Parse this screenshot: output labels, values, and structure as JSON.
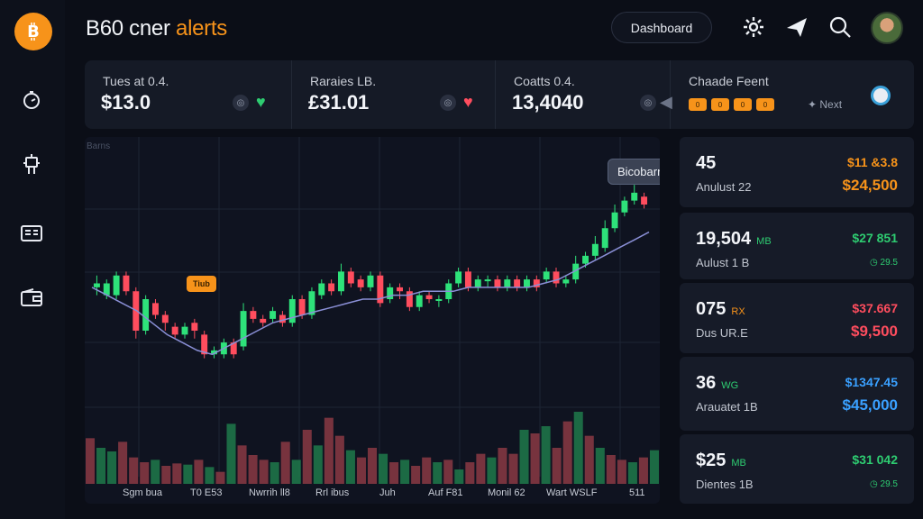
{
  "brand": {
    "title_main": "B60 cner",
    "title_accent": "alerts"
  },
  "header": {
    "dashboard_label": "Dashboard"
  },
  "icons": {
    "logo": "bitcoin-icon",
    "timer": "timer-icon",
    "robot": "robot-icon",
    "news": "news-icon",
    "wallet": "wallet-icon",
    "settings": "gear-icon",
    "send": "send-icon",
    "search": "search-icon"
  },
  "stats": [
    {
      "label": "Tues at 0.4.",
      "value": "$13.0"
    },
    {
      "label": "Raraies LB.",
      "value": "£31.01"
    },
    {
      "label": "Coatts 0.4.",
      "value": "13,4040"
    },
    {
      "label": "Chaade Feent",
      "next": "Next",
      "chips": [
        "0",
        "0",
        "0",
        "0"
      ]
    }
  ],
  "chart": {
    "corner_label": "Barns",
    "tooltip": "Bicobarr",
    "badge": "Tiub",
    "x_labels": [
      "Sgm bua",
      "T0 E53",
      "Nwrrih ll8",
      "Rrl ibus",
      "Juh",
      "Auf F81",
      "Monil 62",
      "Wart WSLF",
      "511"
    ]
  },
  "chart_data": {
    "type": "candlestick",
    "series": [
      {
        "values": [
          [
            -5,
            -4,
            -7,
            -2
          ],
          [
            -7,
            -4,
            -8,
            -3
          ],
          [
            -7,
            -2,
            -8,
            -1
          ],
          [
            -2,
            -6,
            -1,
            -7
          ],
          [
            -6,
            -16,
            -5,
            -18
          ],
          [
            -16,
            -8,
            -17,
            -7
          ],
          [
            -9,
            -12,
            -8,
            -13
          ],
          [
            -12,
            -14,
            -11,
            -16
          ],
          [
            -15,
            -17,
            -14,
            -18
          ],
          [
            -17,
            -15,
            -18,
            -14
          ],
          [
            -14,
            -16,
            -13,
            -18
          ],
          [
            -17,
            -22,
            -16,
            -23
          ],
          [
            -22,
            -21,
            -23,
            -20
          ],
          [
            -22,
            -19,
            -23,
            -18
          ],
          [
            -19,
            -22,
            -18,
            -23
          ],
          [
            -20,
            -11,
            -21,
            -9
          ],
          [
            -11,
            -13,
            -10,
            -14
          ],
          [
            -13,
            -14,
            -12,
            -15
          ],
          [
            -13,
            -11,
            -14,
            -10
          ],
          [
            -12,
            -14,
            -11,
            -15
          ],
          [
            -14,
            -8,
            -15,
            -7
          ],
          [
            -8,
            -12,
            -7,
            -13
          ],
          [
            -12,
            -6,
            -13,
            -5
          ],
          [
            -7,
            -4,
            -8,
            -3
          ],
          [
            -4,
            -6,
            -3,
            -7
          ],
          [
            -6,
            -1,
            -7,
            1
          ],
          [
            -1,
            -4,
            0,
            -5
          ],
          [
            -3,
            -5,
            -2,
            -6
          ],
          [
            -5,
            -2,
            -6,
            -1
          ],
          [
            -2,
            -9,
            -1,
            -10
          ],
          [
            -8,
            -5,
            -9,
            -4
          ],
          [
            -5,
            -6,
            -4,
            -8
          ],
          [
            -6,
            -10,
            -5,
            -11
          ],
          [
            -10,
            -7,
            -11,
            -6
          ],
          [
            -7,
            -8,
            -6,
            -9
          ],
          [
            -8,
            -8,
            -7,
            -10
          ],
          [
            -8,
            -4,
            -9,
            -3
          ],
          [
            -4,
            -1,
            -5,
            0
          ],
          [
            -1,
            -5,
            0,
            -6
          ],
          [
            -5,
            -3,
            -6,
            -2
          ],
          [
            -3,
            -3,
            -2,
            -5
          ],
          [
            -3,
            -5,
            -2,
            -6
          ],
          [
            -5,
            -3,
            -6,
            -2
          ],
          [
            -3,
            -5,
            -2,
            -6
          ],
          [
            -5,
            -3,
            -6,
            -2
          ],
          [
            -3,
            -5,
            -2,
            -6
          ],
          [
            -3,
            -1,
            -4,
            0
          ],
          [
            -1,
            -4,
            0,
            -5
          ],
          [
            -4,
            -3,
            -5,
            -2
          ],
          [
            -3,
            1,
            -4,
            3
          ],
          [
            1,
            3,
            0,
            4
          ],
          [
            3,
            6,
            2,
            8
          ],
          [
            5,
            10,
            4,
            12
          ],
          [
            10,
            14,
            9,
            16
          ],
          [
            14,
            17,
            13,
            18
          ],
          [
            17,
            19,
            16,
            21
          ],
          [
            18,
            16,
            19,
            15
          ]
        ]
      },
      {
        "values": [
          -5,
          -7,
          -9,
          -11,
          -14,
          -17,
          -19,
          -21,
          -22,
          -20,
          -18,
          -16,
          -14,
          -13,
          -12,
          -11,
          -10,
          -9,
          -8,
          -8,
          -7,
          -7,
          -6,
          -6,
          -6,
          -5,
          -5,
          -5,
          -5,
          -5,
          -4,
          -3,
          -1,
          1,
          3,
          5,
          7,
          9
        ]
      }
    ],
    "ylim": [
      -24,
      24
    ],
    "volumes": [
      38,
      30,
      27,
      35,
      22,
      18,
      20,
      15,
      17,
      16,
      20,
      14,
      10,
      50,
      32,
      24,
      20,
      18,
      35,
      20,
      45,
      32,
      55,
      40,
      28,
      22,
      30,
      25,
      18,
      20,
      15,
      22,
      18,
      20,
      12,
      18,
      25,
      22,
      30,
      25,
      45,
      42,
      48,
      30,
      52,
      60,
      40,
      30,
      24,
      20,
      18,
      22,
      28
    ],
    "volume_colors": [
      "r",
      "g",
      "g",
      "r",
      "r",
      "r",
      "g",
      "r",
      "r",
      "g",
      "r",
      "g",
      "r",
      "g",
      "r",
      "r",
      "r",
      "g",
      "r",
      "g",
      "r",
      "g",
      "r",
      "r",
      "g",
      "r",
      "r",
      "g",
      "r",
      "g",
      "r",
      "r",
      "g",
      "r",
      "g",
      "r",
      "r",
      "g",
      "r",
      "r",
      "g",
      "r",
      "g",
      "r",
      "r",
      "g",
      "r",
      "g",
      "r",
      "r",
      "g",
      "r",
      "g"
    ]
  },
  "right_list": [
    {
      "big": "45",
      "tag": "",
      "sub": "Anulust 22",
      "v1": "$11 &3.8",
      "v1_color": "#f7931a",
      "v2": "$24,500",
      "v2_color": "#f7931a"
    },
    {
      "big": "19,504",
      "tag": "MB",
      "tag_color": "#2ecc71",
      "sub": "Aulust 1 B",
      "v1": "$27 851",
      "v1_color": "#2ecc71",
      "v2": "◷ 29.5",
      "v2_color": "#2ecc71"
    },
    {
      "big": "075",
      "tag": "RX",
      "tag_color": "#f7931a",
      "sub": "Dus UR.E",
      "v1": "$37.667",
      "v1_color": "#ff4d5e",
      "v2": "$9,500",
      "v2_color": "#ff4d5e"
    },
    {
      "big": "36",
      "tag": "WG",
      "tag_color": "#2ecc71",
      "sub": "Arauatet 1B",
      "v1": "$1347.45",
      "v1_color": "#3aa0ff",
      "v2": "$45,000",
      "v2_color": "#3aa0ff"
    },
    {
      "big": "$25",
      "tag": "MB",
      "tag_color": "#2ecc71",
      "sub": "Dientes 1B",
      "v1": "$31 042",
      "v1_color": "#2ecc71",
      "v2": "◷ 29.5",
      "v2_color": "#2ecc71"
    }
  ]
}
